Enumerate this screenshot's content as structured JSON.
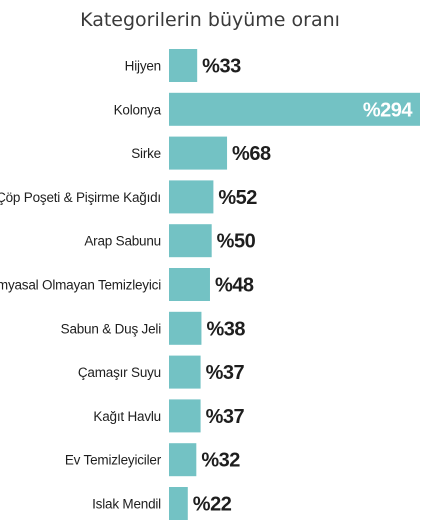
{
  "chart_data": {
    "type": "bar",
    "orientation": "horizontal",
    "title": "Kategorilerin büyüme oranı",
    "categories": [
      "Hijyen",
      "Kolonya",
      "Sirke",
      "Çöp Poşeti & Pişirme Kağıdı",
      "Arap Sabunu",
      "Kimyasal Olmayan Temizleyici",
      "Sabun & Duş Jeli",
      "Çamaşır Suyu",
      "Kağıt Havlu",
      "Ev Temizleyiciler",
      "Islak Mendil"
    ],
    "values": [
      33,
      294,
      68,
      52,
      50,
      48,
      38,
      37,
      37,
      32,
      22
    ],
    "value_labels": [
      "%33",
      "%294",
      "%68",
      "%52",
      "%50",
      "%48",
      "%38",
      "%37",
      "%37",
      "%32",
      "%22"
    ],
    "bar_color": "#73c2c4",
    "label_color_outside": "#1e1e1e",
    "label_color_inside": "#ffffff",
    "grid": false,
    "legend": "none"
  }
}
